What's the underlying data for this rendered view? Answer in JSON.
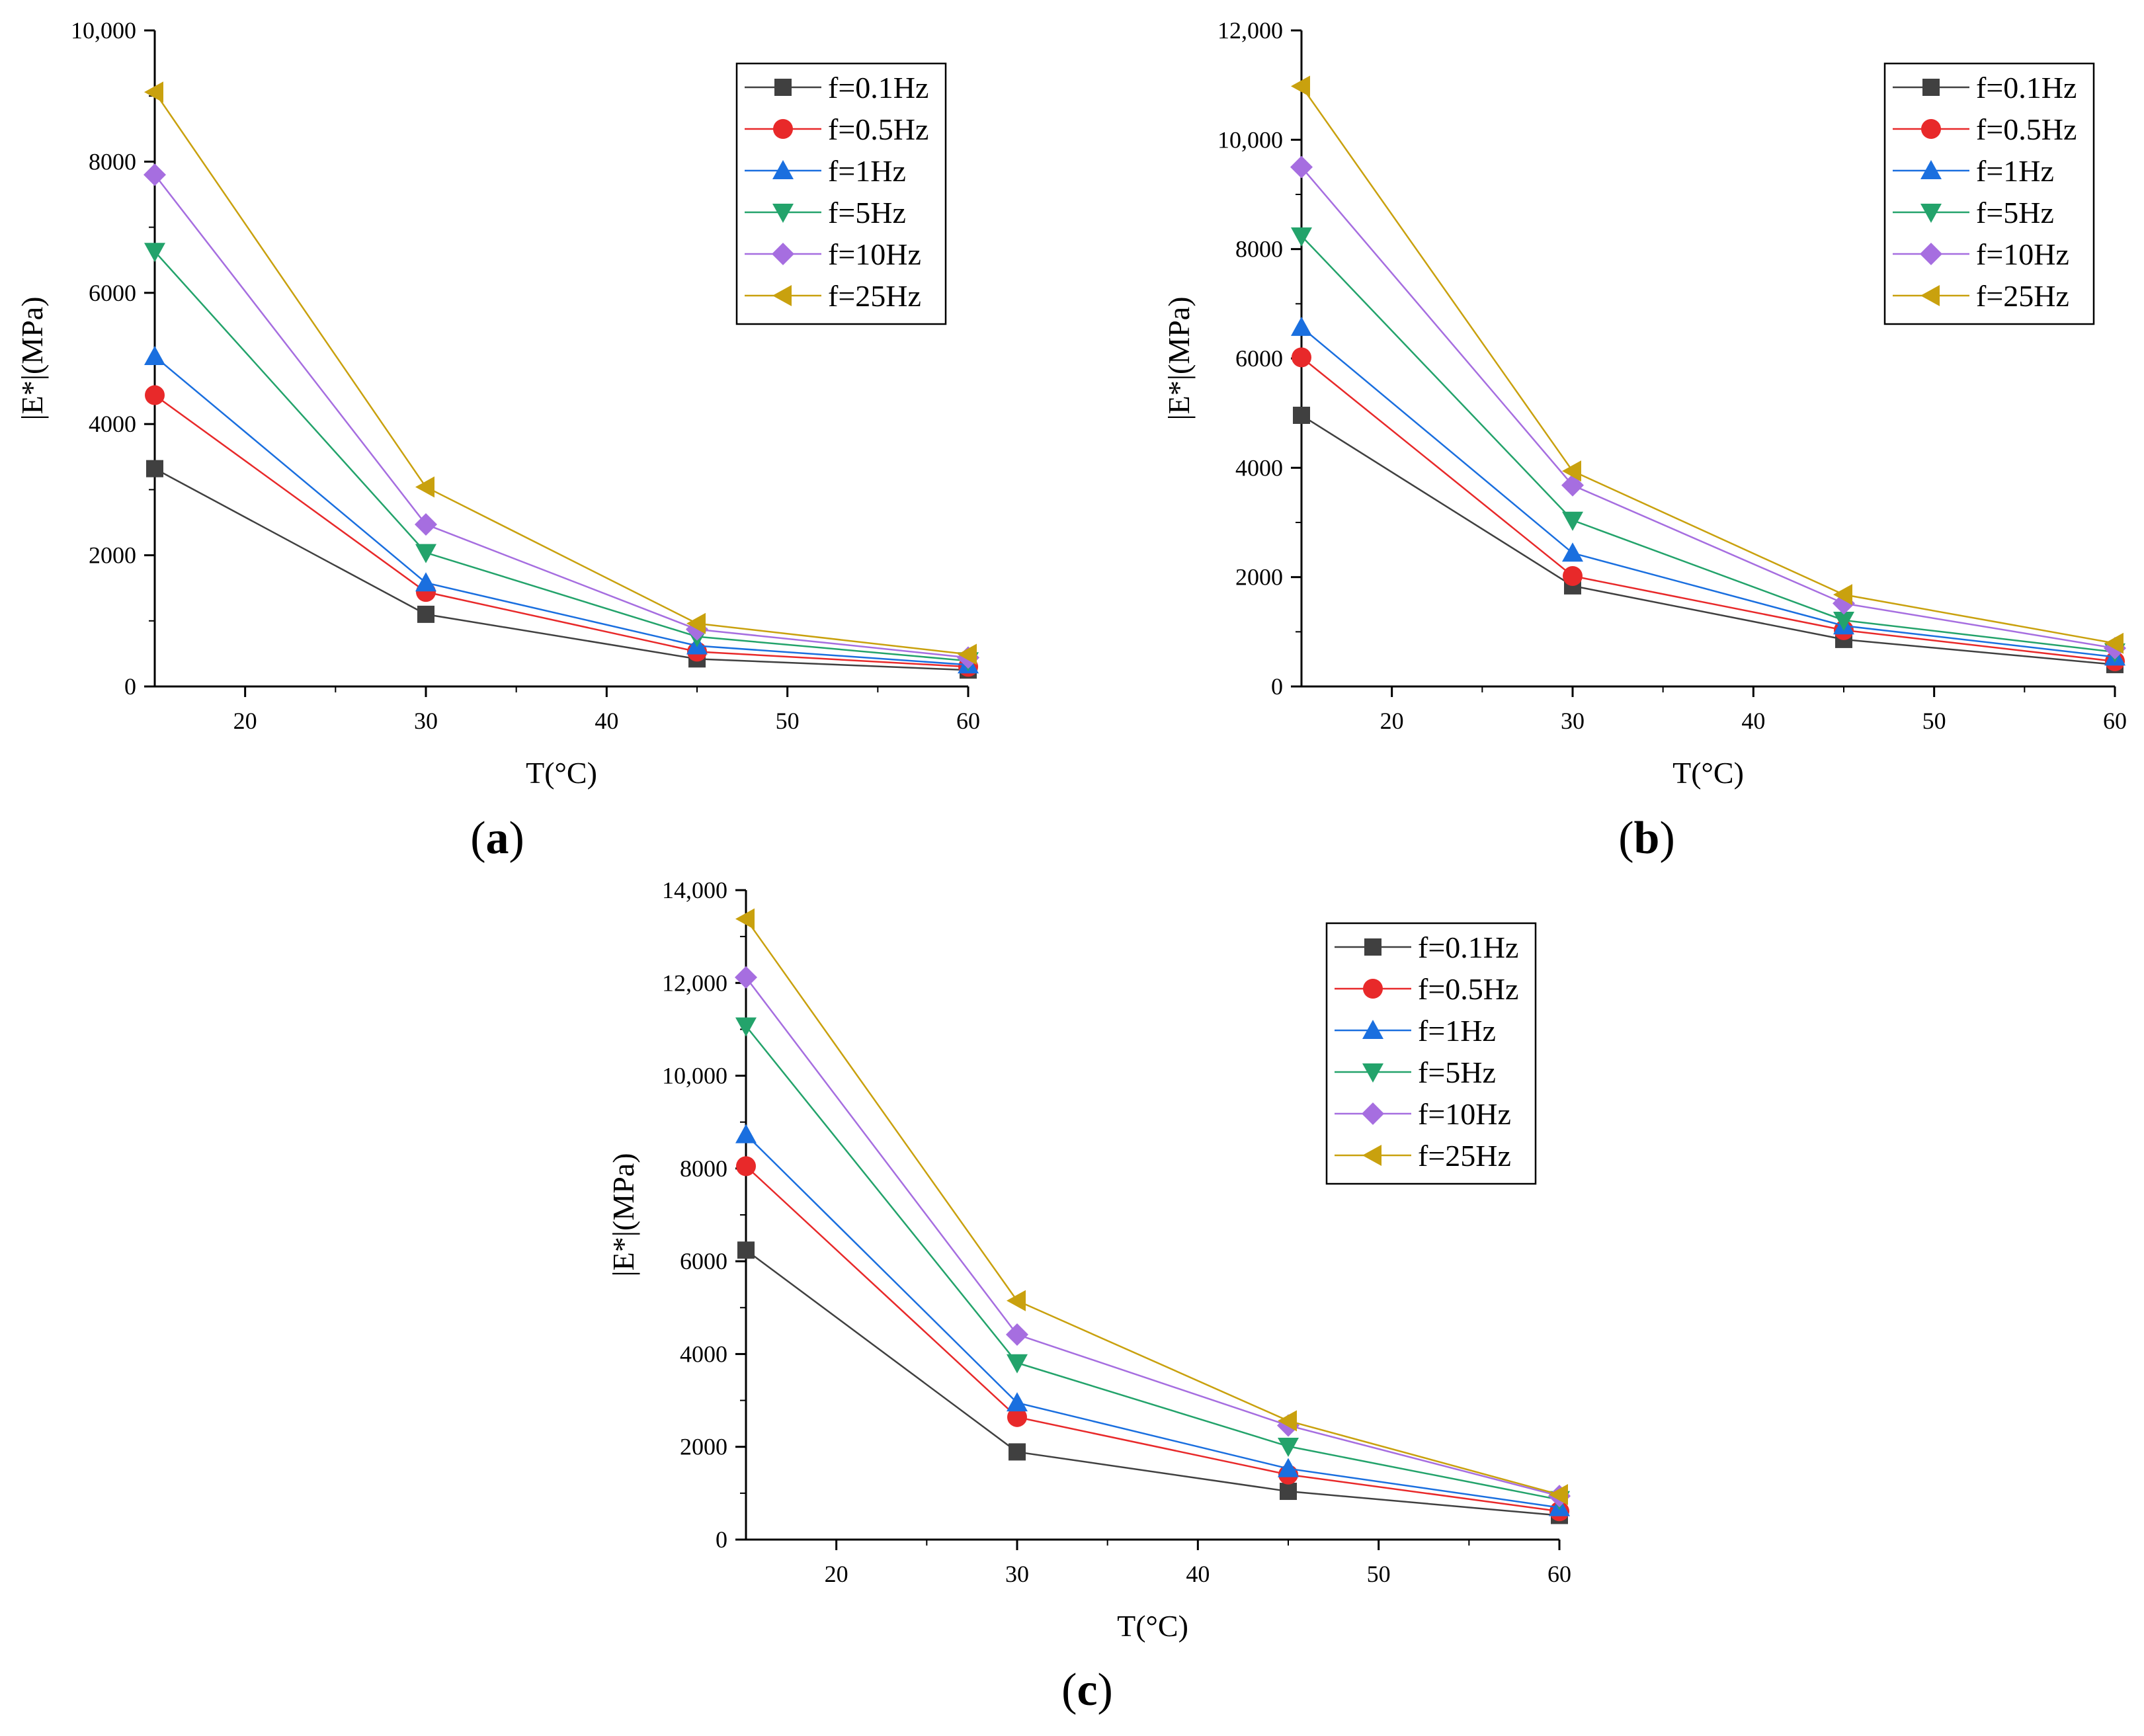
{
  "figure": {
    "panels": [
      "(a)",
      "(b)",
      "(c)"
    ]
  },
  "chart_data": [
    {
      "type": "line",
      "panel": "(a)",
      "panel_letter": "a",
      "title": "",
      "xlabel": "T(°C)",
      "ylabel": "|E*|(MPa)",
      "xlim": [
        15,
        60
      ],
      "ylim": [
        0,
        10000
      ],
      "x_ticks": [
        "20",
        "30",
        "40",
        "50",
        "60"
      ],
      "y_ticks": [
        "0",
        "2000",
        "4000",
        "6000",
        "8000",
        "10,000"
      ],
      "legend_position": "top-right",
      "grid": false,
      "x": [
        15,
        30,
        45,
        60
      ],
      "series": [
        {
          "name": "f=0.1Hz",
          "values": [
            3320,
            1100,
            420,
            250
          ],
          "color": "#404040",
          "marker": "square"
        },
        {
          "name": "f=0.5Hz",
          "values": [
            4440,
            1440,
            530,
            300
          ],
          "color": "#e8292a",
          "marker": "circle"
        },
        {
          "name": "f=1Hz",
          "values": [
            5030,
            1580,
            620,
            330
          ],
          "color": "#1a6fdf",
          "marker": "triangle-up"
        },
        {
          "name": "f=5Hz",
          "values": [
            6630,
            2040,
            760,
            390
          ],
          "color": "#23a36b",
          "marker": "triangle-down"
        },
        {
          "name": "f=10Hz",
          "values": [
            7800,
            2470,
            870,
            440
          ],
          "color": "#a66ee0",
          "marker": "diamond"
        },
        {
          "name": "f=25Hz",
          "values": [
            9060,
            3040,
            960,
            490
          ],
          "color": "#c9a10e",
          "marker": "triangle-left"
        }
      ]
    },
    {
      "type": "line",
      "panel": "(b)",
      "panel_letter": "b",
      "title": "",
      "xlabel": "T(°C)",
      "ylabel": "|E*|(MPa)",
      "xlim": [
        15,
        60
      ],
      "ylim": [
        0,
        12000
      ],
      "x_ticks": [
        "20",
        "30",
        "40",
        "50",
        "60"
      ],
      "y_ticks": [
        "0",
        "2000",
        "4000",
        "6000",
        "8000",
        "10,000",
        "12,000"
      ],
      "legend_position": "top-right",
      "grid": false,
      "x": [
        15,
        30,
        45,
        60
      ],
      "series": [
        {
          "name": "f=0.1Hz",
          "values": [
            4960,
            1840,
            860,
            400
          ],
          "color": "#404040",
          "marker": "square"
        },
        {
          "name": "f=0.5Hz",
          "values": [
            6020,
            2020,
            1030,
            460
          ],
          "color": "#e8292a",
          "marker": "circle"
        },
        {
          "name": "f=1Hz",
          "values": [
            6570,
            2440,
            1110,
            540
          ],
          "color": "#1a6fdf",
          "marker": "triangle-up"
        },
        {
          "name": "f=5Hz",
          "values": [
            8240,
            3040,
            1210,
            630
          ],
          "color": "#23a36b",
          "marker": "triangle-down"
        },
        {
          "name": "f=10Hz",
          "values": [
            9500,
            3680,
            1520,
            700
          ],
          "color": "#a66ee0",
          "marker": "diamond"
        },
        {
          "name": "f=25Hz",
          "values": [
            10980,
            3940,
            1680,
            790
          ],
          "color": "#c9a10e",
          "marker": "triangle-left"
        }
      ]
    },
    {
      "type": "line",
      "panel": "(c)",
      "panel_letter": "c",
      "title": "",
      "xlabel": "T(°C)",
      "ylabel": "|E*|(MPa)",
      "xlim": [
        15,
        60
      ],
      "ylim": [
        0,
        14000
      ],
      "x_ticks": [
        "20",
        "30",
        "40",
        "50",
        "60"
      ],
      "y_ticks": [
        "0",
        "2000",
        "4000",
        "6000",
        "8000",
        "10,000",
        "12,000",
        "14,000"
      ],
      "legend_position": "top-right",
      "grid": false,
      "x": [
        15,
        30,
        45,
        60
      ],
      "series": [
        {
          "name": "f=0.1Hz",
          "values": [
            6240,
            1890,
            1040,
            520
          ],
          "color": "#404040",
          "marker": "square"
        },
        {
          "name": "f=0.5Hz",
          "values": [
            8050,
            2640,
            1400,
            610
          ],
          "color": "#e8292a",
          "marker": "circle"
        },
        {
          "name": "f=1Hz",
          "values": [
            8730,
            2950,
            1530,
            690
          ],
          "color": "#1a6fdf",
          "marker": "triangle-up"
        },
        {
          "name": "f=5Hz",
          "values": [
            11070,
            3810,
            2010,
            860
          ],
          "color": "#23a36b",
          "marker": "triangle-down"
        },
        {
          "name": "f=10Hz",
          "values": [
            12120,
            4420,
            2460,
            940
          ],
          "color": "#a66ee0",
          "marker": "diamond"
        },
        {
          "name": "f=25Hz",
          "values": [
            13380,
            5150,
            2560,
            970
          ],
          "color": "#c9a10e",
          "marker": "triangle-left"
        }
      ]
    }
  ]
}
